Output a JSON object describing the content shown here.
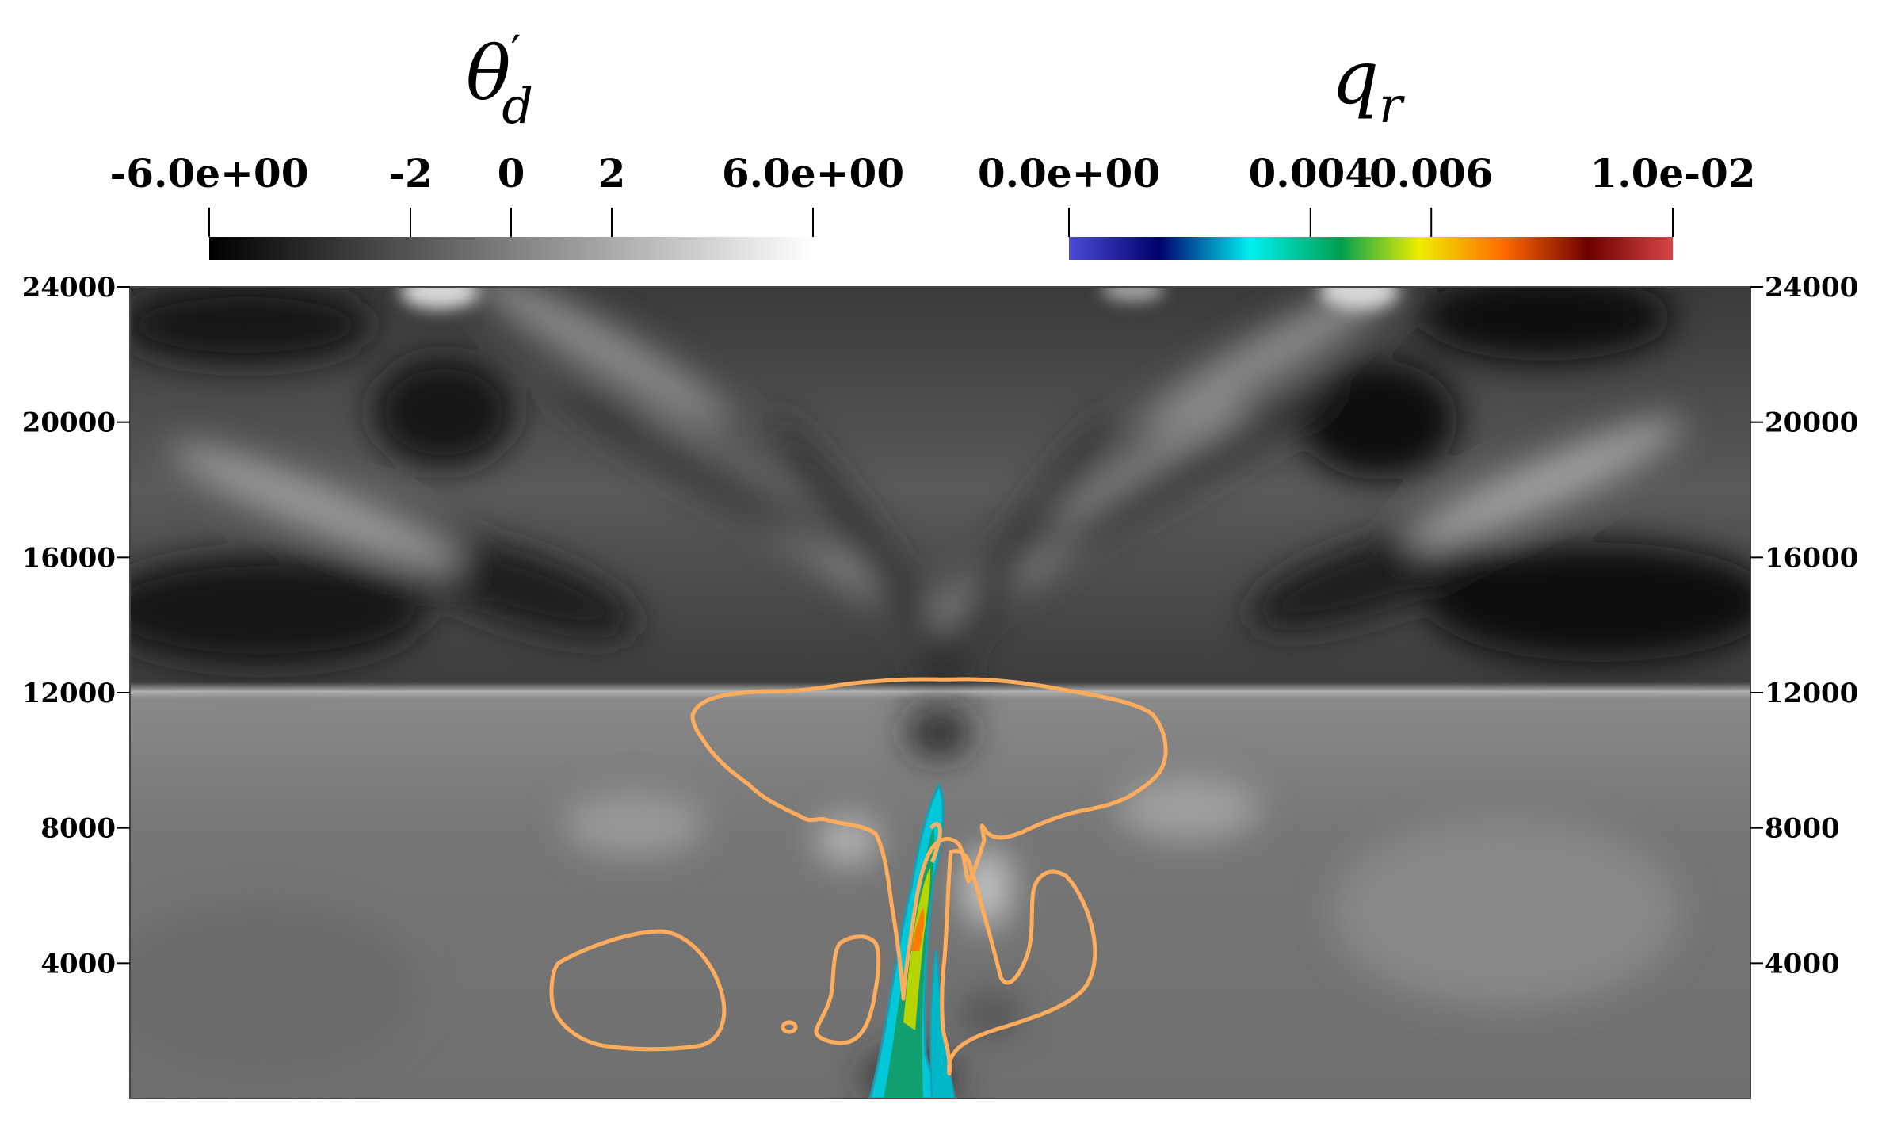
{
  "chart_data": {
    "type": "heatmap",
    "title": "",
    "plot": {
      "x_axis_labels": [],
      "y_axis": {
        "range": [
          0,
          24000
        ],
        "ticks": [
          4000,
          8000,
          12000,
          16000,
          20000,
          24000
        ],
        "tick_labels": [
          "4000",
          "8000",
          "12000",
          "16000",
          "20000",
          "24000"
        ],
        "shown_on": "left and right"
      },
      "grid": false
    },
    "colorbars": [
      {
        "field": "theta_d_prime",
        "title_symbol": "θ",
        "title_subscript": "d",
        "title_prime": "′",
        "range": [
          -6.0,
          6.0
        ],
        "tick_values": [
          -6.0,
          -2,
          0,
          2,
          6.0
        ],
        "tick_labels": [
          "-6.0e+00",
          "-2",
          "0",
          "2",
          "6.0e+00"
        ],
        "colormap": "grayscale",
        "colors": [
          "#000000",
          "#ffffff"
        ],
        "placement": "top-left"
      },
      {
        "field": "q_r",
        "title_symbol": "q",
        "title_subscript": "r",
        "range": [
          0.0,
          0.01
        ],
        "tick_values": [
          0.0,
          0.004,
          0.006,
          0.01
        ],
        "tick_labels": [
          "0.0e+00",
          "0.004",
          "0.006",
          "1.0e-02"
        ],
        "colormap": "jet-like",
        "colors": [
          "#4b4bd6",
          "#00006e",
          "#00f0f0",
          "#00a050",
          "#eeee00",
          "#ff6a00",
          "#6e0000",
          "#d94545"
        ],
        "placement": "top-right"
      }
    ],
    "contour": {
      "color": "#ffad5c",
      "description_level": "cloud boundary contour"
    }
  },
  "colors": {
    "background": "#ffffff",
    "contour": "#ffad5c",
    "field_base": "#6e6e6e"
  }
}
